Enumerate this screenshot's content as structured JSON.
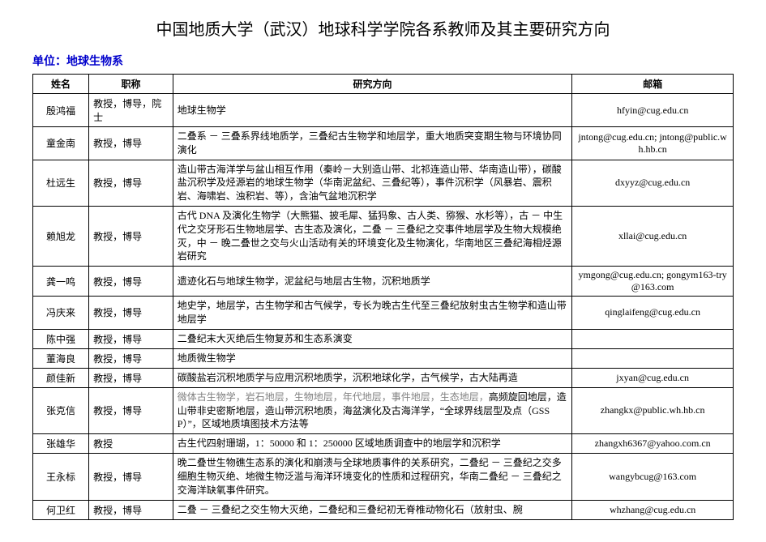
{
  "page": {
    "title": "中国地质大学（武汉）地球科学学院各系教师及其主要研究方向",
    "subtitle_label": "单位：",
    "subtitle_dept": "地球生物系",
    "background_color": "#ffffff",
    "text_color": "#000000",
    "accent_color": "#0000cc",
    "gray_color": "#808080",
    "border_color": "#000000",
    "title_fontsize": 20,
    "body_fontsize": 12
  },
  "table": {
    "columns": [
      "姓名",
      "职称",
      "研究方向",
      "邮箱"
    ],
    "col_widths_pct": [
      8,
      12,
      57,
      23
    ],
    "rows": [
      {
        "name": "殷鸿福",
        "title": "教授，博导，院士",
        "research": "地球生物学",
        "email": "hfyin@cug.edu.cn"
      },
      {
        "name": "童金南",
        "title": "教授，博导",
        "research": "二叠系 － 三叠系界线地质学，三叠纪古生物学和地层学，重大地质突变期生物与环境协同演化",
        "email": "jntong@cug.edu.cn; jntong@public.wh.hb.cn"
      },
      {
        "name": "杜远生",
        "title": "教授，博导",
        "research": "造山带古海洋学与盆山相互作用（秦岭－大别造山带、北祁连造山带、华南造山带），碳酸盐沉积学及烃源岩的地球生物学（华南泥盆纪、三叠纪等），事件沉积学（风暴岩、震积岩、海啸岩、浊积岩、等），含油气盆地沉积学",
        "email": "dxyyz@cug.edu.cn"
      },
      {
        "name": "赖旭龙",
        "title": "教授，博导",
        "research": "古代 DNA 及演化生物学（大熊猫、披毛犀、猛犸象、古人类、猕猴、水杉等），古 － 中生代之交牙形石生物地层学、古生态及演化，二叠 － 三叠纪之交事件地层学及生物大规模绝灭，中 － 晚二叠世之交与火山活动有关的环境变化及生物演化，华南地区三叠纪海相烃源岩研究",
        "email": "xllai@cug.edu.cn"
      },
      {
        "name": "龚一鸣",
        "title": "教授，博导",
        "research": "遗迹化石与地球生物学，泥盆纪与地层古生物，沉积地质学",
        "email": "ymgong@cug.edu.cn; gongym163-try@163.com"
      },
      {
        "name": "冯庆来",
        "title": "教授，博导",
        "research": "地史学，地层学，古生物学和古气候学，专长为晚古生代至三叠纪放射虫古生物学和造山带地层学",
        "email": "qinglaifeng@cug.edu.cn"
      },
      {
        "name": "陈中强",
        "title": "教授，博导",
        "research": "二叠纪末大灭绝后生物复苏和生态系演变",
        "email": ""
      },
      {
        "name": "董海良",
        "title": "教授，博导",
        "research": "地质微生物学",
        "email": ""
      },
      {
        "name": "颜佳新",
        "title": "教授，博导",
        "research": "碳酸盐岩沉积地质学与应用沉积地质学，沉积地球化学，古气候学，古大陆再造",
        "email": "jxyan@cug.edu.cn"
      },
      {
        "name": "张克信",
        "title": "教授，博导",
        "research": "",
        "research_gray": "微体古生物学，岩石地层，生物地层，年代地层，事件地层，生态地层，",
        "research_tail": "高频旋回地层，造山带非史密斯地层，造山带沉积地质，海盆演化及古海洋学，“全球界线层型及点（GSSP）”，区域地质填图技术方法等",
        "email": "zhangkx@public.wh.hb.cn"
      },
      {
        "name": "张雄华",
        "title": "教授",
        "research": "古生代四射珊瑚，1：50000 和 1：250000 区域地质调查中的地层学和沉积学",
        "email": "zhangxh6367@yahoo.com.cn"
      },
      {
        "name": "王永标",
        "title": "教授，博导",
        "research": "晚二叠世生物礁生态系的演化和崩溃与全球地质事件的关系研究，二叠纪 － 三叠纪之交多细胞生物灭绝、地微生物泛滥与海洋环境变化的性质和过程研究，华南二叠纪 － 三叠纪之交海洋缺氧事件研究。",
        "email": "wangybcug@163.com"
      },
      {
        "name": "何卫红",
        "title": "教授，博导",
        "research": "二叠 － 三叠纪之交生物大灭绝，二叠纪和三叠纪初无脊椎动物化石（放射虫、腕",
        "email": "whzhang@cug.edu.cn"
      }
    ]
  }
}
